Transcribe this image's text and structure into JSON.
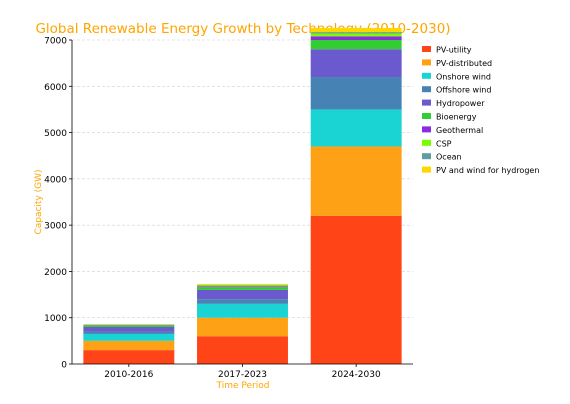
{
  "chart_data": {
    "type": "bar",
    "stacked": true,
    "title": "Global Renewable Energy Growth by Technology (2010-2030)",
    "xlabel": "Time Period",
    "ylabel": "Capacity (GW)",
    "categories": [
      "2010-2016",
      "2017-2023",
      "2024-2030"
    ],
    "ylim": [
      0,
      7000
    ],
    "yticks": [
      0,
      1000,
      2000,
      3000,
      4000,
      5000,
      6000,
      7000
    ],
    "grid": true,
    "legend_position": "top-right",
    "colors": {
      "title": "#ffa500",
      "axis_label": "#ffa500"
    },
    "series": [
      {
        "name": "PV-utility",
        "color": "#ff4518",
        "values": [
          300,
          600,
          3200
        ]
      },
      {
        "name": "PV-distributed",
        "color": "#ffa115",
        "values": [
          200,
          400,
          1500
        ]
      },
      {
        "name": "Onshore wind",
        "color": "#1ad3d3",
        "values": [
          150,
          300,
          800
        ]
      },
      {
        "name": "Offshore wind",
        "color": "#4682b4",
        "values": [
          50,
          100,
          700
        ]
      },
      {
        "name": "Hydropower",
        "color": "#6a5acd",
        "values": [
          100,
          200,
          600
        ]
      },
      {
        "name": "Bioenergy",
        "color": "#32cd32",
        "values": [
          30,
          60,
          200
        ]
      },
      {
        "name": "Geothermal",
        "color": "#8a2be2",
        "values": [
          10,
          20,
          80
        ]
      },
      {
        "name": "CSP",
        "color": "#7cfc00",
        "values": [
          10,
          20,
          60
        ]
      },
      {
        "name": "Ocean",
        "color": "#5f9ea0",
        "values": [
          5,
          10,
          30
        ]
      },
      {
        "name": "PV and wind for hydrogen",
        "color": "#ffd700",
        "values": [
          5,
          20,
          90
        ]
      }
    ]
  }
}
